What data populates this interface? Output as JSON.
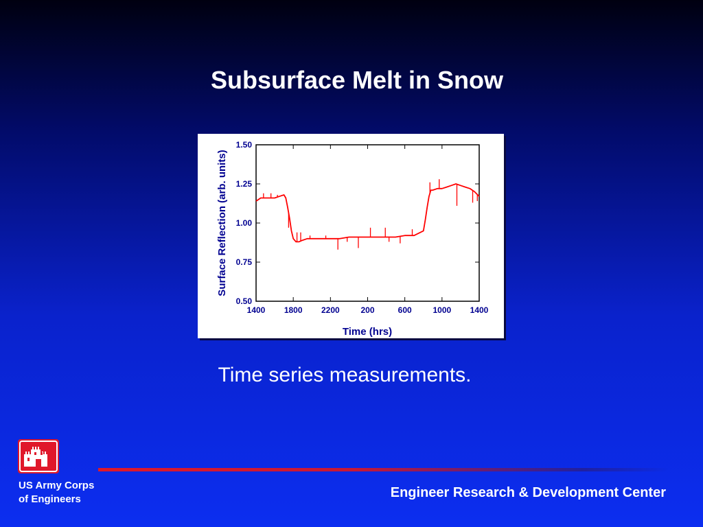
{
  "slide": {
    "title": "Subsurface Melt in Snow",
    "caption": "Time series measurements."
  },
  "footer": {
    "org_line1": "US Army Corps",
    "org_line2": "of Engineers",
    "center_name": "Engineer Research & Development Center",
    "logo_icon": "castle-icon"
  },
  "colors": {
    "accent_red": "#e0182a",
    "series": "#ff0000"
  },
  "chart_data": {
    "type": "line",
    "xlabel": "Time (hrs)",
    "ylabel": "Surface Reflection (arb. units)",
    "x_ticks": [
      "1400",
      "1800",
      "2200",
      "200",
      "600",
      "1000",
      "1400"
    ],
    "y_ticks": [
      "0.50",
      "0.75",
      "1.00",
      "1.25",
      "1.50"
    ],
    "xlim": [
      0,
      24
    ],
    "ylim": [
      0.5,
      1.5
    ],
    "grid": false,
    "series": [
      {
        "x": [
          0,
          0.5,
          1,
          1.5,
          2,
          2.5,
          3,
          3.2,
          3.4,
          3.6,
          3.8,
          4,
          4.3,
          4.6,
          5,
          5.5,
          6,
          7,
          8,
          9,
          10,
          11,
          12,
          13,
          14,
          15,
          16,
          17,
          18,
          18.2,
          18.4,
          18.6,
          18.8,
          19,
          19.5,
          20,
          20.5,
          21,
          21.5,
          22,
          22.5,
          23,
          23.5,
          24
        ],
        "y": [
          1.14,
          1.16,
          1.16,
          1.16,
          1.16,
          1.17,
          1.18,
          1.16,
          1.1,
          1.03,
          0.95,
          0.9,
          0.88,
          0.88,
          0.89,
          0.9,
          0.9,
          0.9,
          0.9,
          0.9,
          0.91,
          0.91,
          0.91,
          0.91,
          0.91,
          0.91,
          0.92,
          0.92,
          0.95,
          1.02,
          1.1,
          1.17,
          1.21,
          1.21,
          1.22,
          1.22,
          1.23,
          1.24,
          1.25,
          1.24,
          1.23,
          1.22,
          1.2,
          1.17
        ]
      }
    ],
    "spikes": [
      {
        "x": 0.8,
        "y": 1.19
      },
      {
        "x": 1.6,
        "y": 1.19
      },
      {
        "x": 2.3,
        "y": 1.18
      },
      {
        "x": 3.5,
        "y": 0.97
      },
      {
        "x": 4.4,
        "y": 0.94
      },
      {
        "x": 4.8,
        "y": 0.94
      },
      {
        "x": 5.8,
        "y": 0.92
      },
      {
        "x": 7.5,
        "y": 0.92
      },
      {
        "x": 8.8,
        "y": 0.83
      },
      {
        "x": 9.8,
        "y": 0.88
      },
      {
        "x": 11.0,
        "y": 0.84
      },
      {
        "x": 12.3,
        "y": 0.97
      },
      {
        "x": 13.9,
        "y": 0.97
      },
      {
        "x": 14.3,
        "y": 0.88
      },
      {
        "x": 15.5,
        "y": 0.87
      },
      {
        "x": 16.8,
        "y": 0.96
      },
      {
        "x": 18.7,
        "y": 1.26
      },
      {
        "x": 19.7,
        "y": 1.28
      },
      {
        "x": 21.6,
        "y": 1.11
      },
      {
        "x": 23.3,
        "y": 1.13
      },
      {
        "x": 23.8,
        "y": 1.14
      }
    ]
  }
}
